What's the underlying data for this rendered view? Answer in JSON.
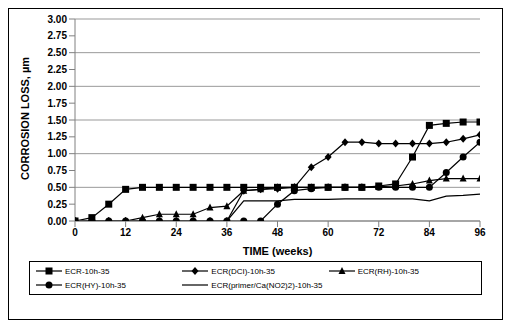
{
  "chart_data": {
    "type": "line",
    "x_label": "TIME (weeks)",
    "y_label": "CORROSION LOSS, µm",
    "x": [
      0,
      4,
      8,
      12,
      16,
      20,
      24,
      28,
      32,
      36,
      40,
      44,
      48,
      52,
      56,
      60,
      64,
      68,
      72,
      76,
      80,
      84,
      88,
      92,
      96
    ],
    "series": [
      {
        "name": "ECR-10h-35",
        "color": "#000000",
        "marker": "square",
        "line_style": "solid",
        "values": [
          0,
          0.05,
          0.25,
          0.47,
          0.5,
          0.5,
          0.5,
          0.5,
          0.5,
          0.5,
          0.5,
          0.5,
          0.5,
          0.5,
          0.5,
          0.5,
          0.5,
          0.5,
          0.52,
          0.55,
          0.95,
          1.42,
          1.45,
          1.47,
          1.47
        ]
      },
      {
        "name": "ECR(DCI)-10h-35",
        "color": "#000000",
        "marker": "diamond",
        "line_style": "solid",
        "values": [
          0,
          0,
          0,
          0,
          0,
          0,
          0,
          0,
          0,
          0,
          0.45,
          0.47,
          0.48,
          0.5,
          0.8,
          0.95,
          1.17,
          1.17,
          1.15,
          1.15,
          1.15,
          1.15,
          1.17,
          1.22,
          1.28
        ]
      },
      {
        "name": "ECR(RH)-10h-35",
        "color": "#000000",
        "marker": "triangle",
        "line_style": "solid",
        "values": [
          0,
          0,
          0,
          0,
          0.05,
          0.1,
          0.1,
          0.1,
          0.2,
          0.22,
          0.45,
          0.47,
          0.5,
          0.5,
          0.5,
          0.5,
          0.5,
          0.5,
          0.51,
          0.52,
          0.55,
          0.6,
          0.63,
          0.63,
          0.63
        ]
      },
      {
        "name": "ECR(HY)-10h-35",
        "color": "#000000",
        "marker": "circle",
        "line_style": "solid",
        "values": [
          0,
          0,
          0,
          0,
          0,
          0,
          0,
          0,
          0,
          0,
          0,
          0,
          0.25,
          0.45,
          0.48,
          0.5,
          0.5,
          0.5,
          0.5,
          0.5,
          0.5,
          0.5,
          0.72,
          0.95,
          1.17
        ]
      },
      {
        "name": "ECR(primer/Ca(NO2)2)-10h-35",
        "color": "#000000",
        "marker": "none",
        "line_style": "solid",
        "values": [
          0,
          0,
          0,
          0,
          0,
          0,
          0,
          0,
          0,
          0,
          0.3,
          0.3,
          0.3,
          0.32,
          0.32,
          0.32,
          0.33,
          0.33,
          0.33,
          0.33,
          0.33,
          0.3,
          0.37,
          0.38,
          0.4
        ]
      }
    ],
    "xlim": [
      0,
      96
    ],
    "xticks": [
      0,
      12,
      24,
      36,
      48,
      60,
      72,
      84,
      96
    ],
    "ylim": [
      0,
      3
    ],
    "yticks": [
      {
        "value": 0,
        "label": "0.00"
      },
      {
        "value": 0.25,
        "label": "0.25"
      },
      {
        "value": 0.5,
        "label": "0.50"
      },
      {
        "value": 0.75,
        "label": "0.75"
      },
      {
        "value": 1,
        "label": "1.00"
      },
      {
        "value": 1.25,
        "label": "1.25"
      },
      {
        "value": 1.5,
        "label": "1.50"
      },
      {
        "value": 1.75,
        "label": "1.75"
      },
      {
        "value": 2,
        "label": "2.00"
      },
      {
        "value": 2.25,
        "label": "2.25"
      },
      {
        "value": 2.5,
        "label": "2.50"
      },
      {
        "value": 2.75,
        "label": "2.75"
      },
      {
        "value": 3,
        "label": "3.00"
      }
    ],
    "grid": true,
    "legend": "bottom"
  }
}
